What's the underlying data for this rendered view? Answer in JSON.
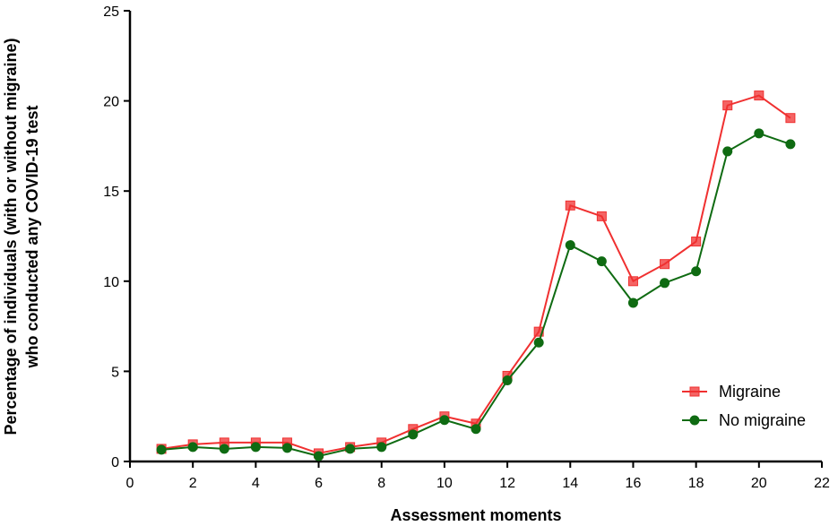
{
  "chart_data": {
    "type": "line",
    "xlabel": "Assessment moments",
    "ylabel_lines": [
      "Percentage of individuals (with or without migraine)",
      "who conducted any COVID-19 test"
    ],
    "xlim": [
      0,
      22
    ],
    "ylim": [
      0,
      25
    ],
    "xticks": [
      0,
      2,
      4,
      6,
      8,
      10,
      12,
      14,
      16,
      18,
      20,
      22
    ],
    "yticks": [
      0,
      5,
      10,
      15,
      20,
      25
    ],
    "grid": false,
    "legend_position": "bottom-right",
    "x": [
      1,
      2,
      3,
      4,
      5,
      6,
      7,
      8,
      9,
      10,
      11,
      12,
      13,
      14,
      15,
      16,
      17,
      18,
      19,
      20,
      21
    ],
    "series": [
      {
        "name": "Migraine",
        "color": "#f03030",
        "marker": "square",
        "values": [
          0.7,
          0.95,
          1.05,
          1.05,
          1.05,
          0.45,
          0.8,
          1.05,
          1.8,
          2.5,
          2.1,
          4.75,
          7.2,
          14.2,
          13.6,
          10.0,
          10.95,
          12.2,
          19.75,
          20.3,
          19.05
        ]
      },
      {
        "name": "No migraine",
        "color": "#0f6b12",
        "marker": "circle",
        "values": [
          0.65,
          0.8,
          0.7,
          0.8,
          0.75,
          0.3,
          0.7,
          0.8,
          1.5,
          2.3,
          1.8,
          4.5,
          6.6,
          12.0,
          11.1,
          8.8,
          9.9,
          10.55,
          17.2,
          18.2,
          17.6
        ]
      }
    ]
  }
}
